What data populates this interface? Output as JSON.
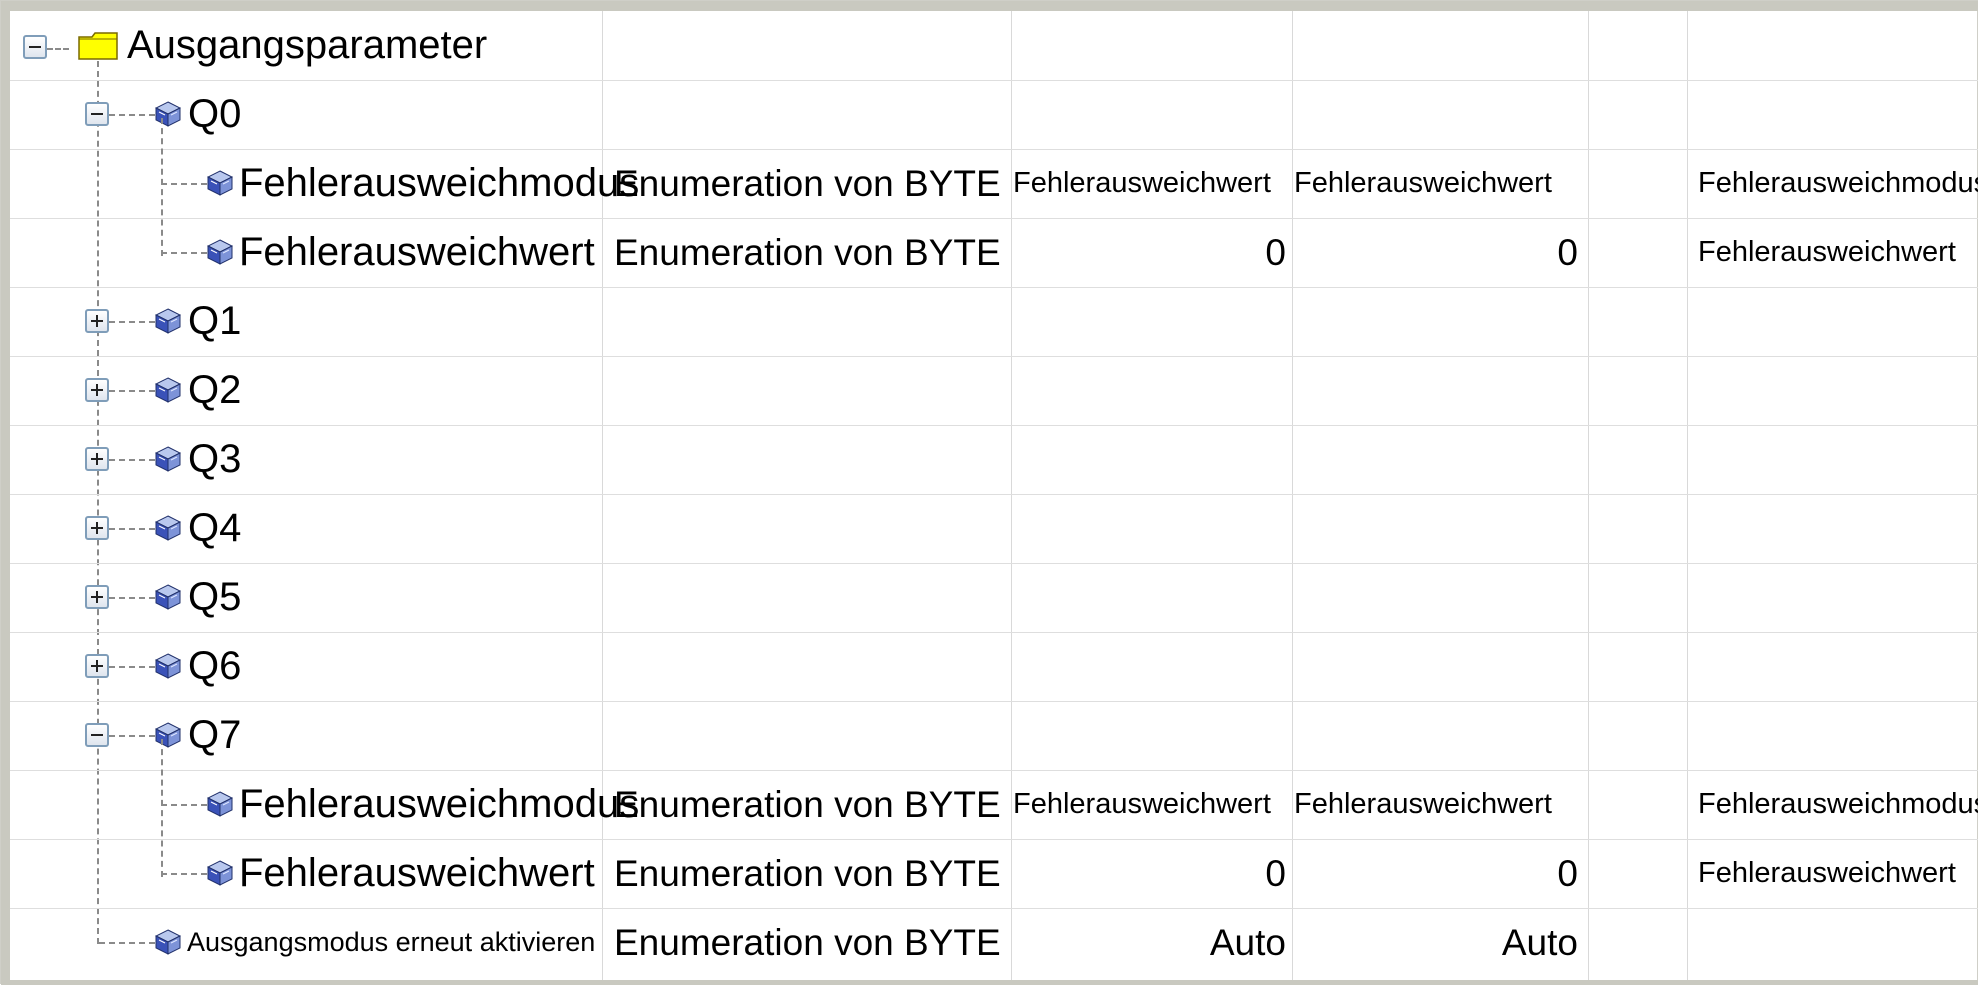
{
  "tree": {
    "root": {
      "label": "Ausgangsparameter",
      "icon": "folder-icon",
      "expanded": true
    },
    "rows": [
      {
        "kind": "group",
        "label": "Q0",
        "expanded": true
      },
      {
        "kind": "param",
        "label": "Fehlerausweichmodus",
        "type": "Enumeration von BYTE",
        "default": "Fehlerausweichwert",
        "value": "Fehlerausweichwert",
        "description": "Fehlerausweichmodus"
      },
      {
        "kind": "param",
        "label": "Fehlerausweichwert",
        "type": "Enumeration von BYTE",
        "default": "0",
        "value": "0",
        "description": "Fehlerausweichwert"
      },
      {
        "kind": "group",
        "label": "Q1",
        "expanded": false
      },
      {
        "kind": "group",
        "label": "Q2",
        "expanded": false
      },
      {
        "kind": "group",
        "label": "Q3",
        "expanded": false
      },
      {
        "kind": "group",
        "label": "Q4",
        "expanded": false
      },
      {
        "kind": "group",
        "label": "Q5",
        "expanded": false
      },
      {
        "kind": "group",
        "label": "Q6",
        "expanded": false
      },
      {
        "kind": "group",
        "label": "Q7",
        "expanded": true
      },
      {
        "kind": "param",
        "label": "Fehlerausweichmodus",
        "type": "Enumeration von BYTE",
        "default": "Fehlerausweichwert",
        "value": "Fehlerausweichwert",
        "description": "Fehlerausweichmodus"
      },
      {
        "kind": "param",
        "label": "Fehlerausweichwert",
        "type": "Enumeration von BYTE",
        "default": "0",
        "value": "0",
        "description": "Fehlerausweichwert"
      },
      {
        "kind": "param",
        "label": "Ausgangsmodus erneut aktivieren",
        "type": "Enumeration von BYTE",
        "default": "Auto",
        "value": "Auto",
        "description": ""
      }
    ]
  },
  "colors": {
    "grid": "#d9d9d9",
    "folder": "#ffff00",
    "treeline": "#8a8a8a",
    "expander_border": "#7f9db9"
  }
}
